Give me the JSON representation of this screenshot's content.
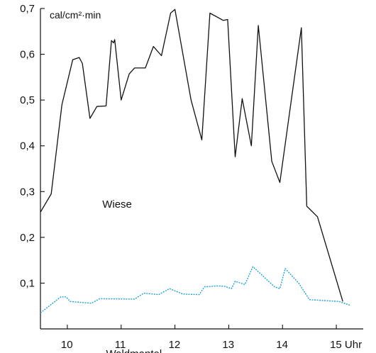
{
  "chart_data": {
    "type": "line",
    "unit_label": "cal/cm²·min",
    "xlim": [
      9.5,
      15.5
    ],
    "ylim": [
      0,
      0.7
    ],
    "x_ticks": [
      {
        "value": 10,
        "label": "10"
      },
      {
        "value": 11,
        "label": "11"
      },
      {
        "value": 12,
        "label": "12"
      },
      {
        "value": 13,
        "label": "13"
      },
      {
        "value": 14,
        "label": "14"
      },
      {
        "value": 15,
        "label": "15 Uhr"
      }
    ],
    "y_ticks": [
      {
        "value": 0.1,
        "label": "0,1"
      },
      {
        "value": 0.2,
        "label": "0,2"
      },
      {
        "value": 0.3,
        "label": "0,3"
      },
      {
        "value": 0.4,
        "label": "0,4"
      },
      {
        "value": 0.5,
        "label": "0,5"
      },
      {
        "value": 0.6,
        "label": "0,6"
      },
      {
        "value": 0.7,
        "label": "0,7"
      }
    ],
    "series": [
      {
        "name": "Wiese",
        "color": "#111111",
        "style": "solid",
        "label_at": [
          10.65,
          0.265
        ],
        "points": [
          [
            9.5,
            0.255
          ],
          [
            9.7,
            0.295
          ],
          [
            9.9,
            0.49
          ],
          [
            10.1,
            0.588
          ],
          [
            10.22,
            0.593
          ],
          [
            10.28,
            0.58
          ],
          [
            10.42,
            0.46
          ],
          [
            10.55,
            0.486
          ],
          [
            10.72,
            0.487
          ],
          [
            10.82,
            0.63
          ],
          [
            10.86,
            0.625
          ],
          [
            10.88,
            0.632
          ],
          [
            11.0,
            0.5
          ],
          [
            11.15,
            0.557
          ],
          [
            11.25,
            0.57
          ],
          [
            11.45,
            0.57
          ],
          [
            11.6,
            0.617
          ],
          [
            11.75,
            0.597
          ],
          [
            11.92,
            0.69
          ],
          [
            12.0,
            0.698
          ],
          [
            12.3,
            0.5
          ],
          [
            12.5,
            0.413
          ],
          [
            12.65,
            0.69
          ],
          [
            12.9,
            0.674
          ],
          [
            12.98,
            0.676
          ],
          [
            13.12,
            0.376
          ],
          [
            13.25,
            0.503
          ],
          [
            13.42,
            0.4
          ],
          [
            13.55,
            0.663
          ],
          [
            13.8,
            0.366
          ],
          [
            13.95,
            0.32
          ],
          [
            14.35,
            0.658
          ],
          [
            14.45,
            0.268
          ],
          [
            14.65,
            0.245
          ],
          [
            15.12,
            0.06
          ]
        ]
      },
      {
        "name": "Waldmantel",
        "color": "#1aa3d6",
        "style": "dotted",
        "label_at": [
          10.72,
          -0.062
        ],
        "points": [
          [
            9.5,
            0.035
          ],
          [
            9.88,
            0.07
          ],
          [
            9.98,
            0.07
          ],
          [
            10.05,
            0.06
          ],
          [
            10.45,
            0.056
          ],
          [
            10.6,
            0.066
          ],
          [
            11.25,
            0.065
          ],
          [
            11.42,
            0.078
          ],
          [
            11.7,
            0.075
          ],
          [
            11.9,
            0.088
          ],
          [
            12.15,
            0.076
          ],
          [
            12.45,
            0.075
          ],
          [
            12.55,
            0.092
          ],
          [
            12.8,
            0.094
          ],
          [
            12.92,
            0.093
          ],
          [
            13.05,
            0.088
          ],
          [
            13.12,
            0.104
          ],
          [
            13.3,
            0.097
          ],
          [
            13.45,
            0.136
          ],
          [
            13.75,
            0.103
          ],
          [
            13.85,
            0.092
          ],
          [
            13.95,
            0.088
          ],
          [
            14.05,
            0.132
          ],
          [
            14.3,
            0.1
          ],
          [
            14.5,
            0.064
          ],
          [
            15.05,
            0.06
          ],
          [
            15.25,
            0.052
          ]
        ]
      }
    ]
  }
}
